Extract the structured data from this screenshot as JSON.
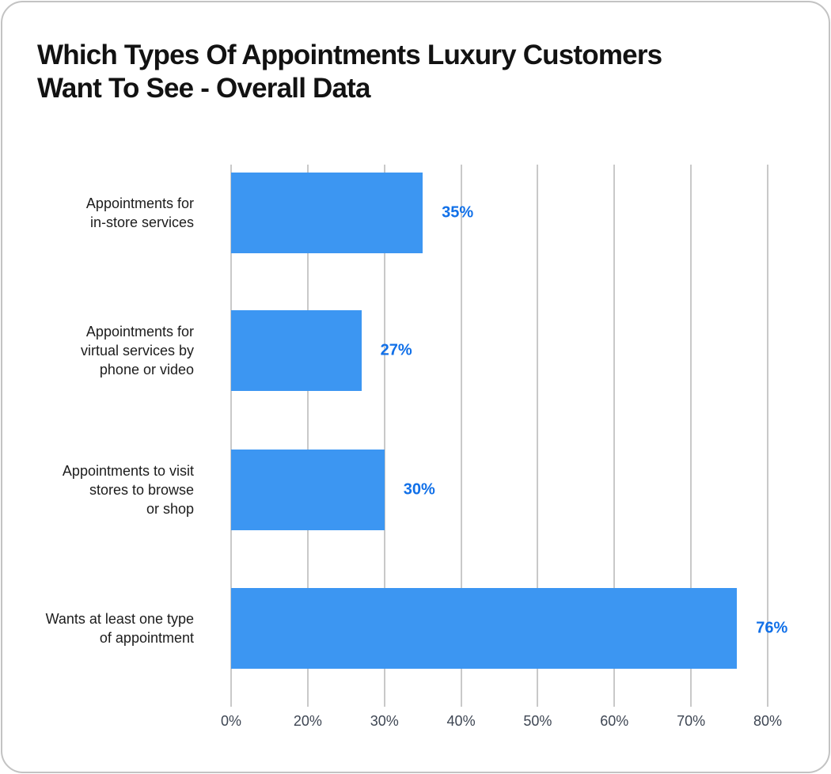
{
  "card": {
    "title": "Which Types Of Appointments Luxury Customers\nWant To See - Overall Data"
  },
  "chart_data": {
    "type": "bar",
    "orientation": "horizontal",
    "title": "Which Types Of Appointments Luxury Customers Want To See - Overall Data",
    "categories": [
      "Appointments for in-store services",
      "Appointments for virtual services by phone or video",
      "Appointments to visit stores to browse or shop",
      "Wants at least one type of appointment"
    ],
    "category_lines": [
      "Appointments for\nin-store services",
      "Appointments for\nvirtual services by\nphone or video",
      "Appointments to visit\nstores to browse\nor shop",
      "Wants at least one type\nof appointment"
    ],
    "values": [
      35,
      27,
      30,
      76
    ],
    "value_labels": [
      "35%",
      "27%",
      "30%",
      "76%"
    ],
    "xlabel": "",
    "ylabel": "",
    "axis": {
      "tick_labels": [
        "0%",
        "20%",
        "30%",
        "40%",
        "50%",
        "60%",
        "70%",
        "80%"
      ],
      "tick_values": [
        0,
        20,
        30,
        40,
        50,
        60,
        70,
        80
      ],
      "grid": true,
      "note": "gridlines equally spaced; 10% label absent on original"
    },
    "legend": "none",
    "colors": {
      "bar": "#3c96f2",
      "value_label": "#1170e8",
      "gridline": "#c9c9c9",
      "tick_text": "#3e4653",
      "category_text": "#1c1c1c",
      "title_text": "#121212",
      "card_border": "#c3c3c3",
      "background": "#ffffff"
    }
  }
}
